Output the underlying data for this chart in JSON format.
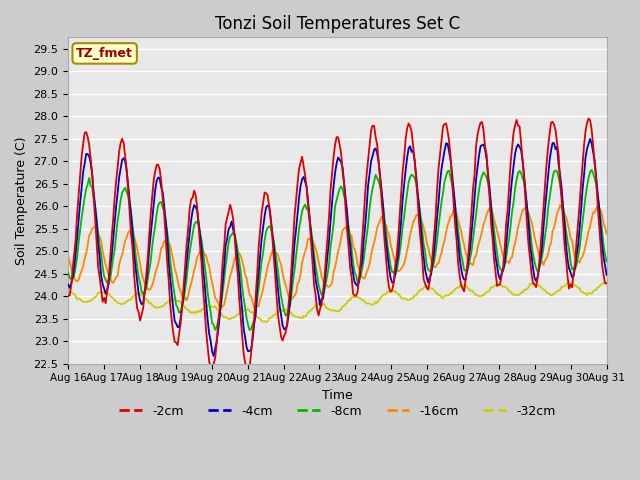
{
  "title": "Tonzi Soil Temperatures Set C",
  "xlabel": "Time",
  "ylabel": "Soil Temperature (C)",
  "ylim": [
    22.5,
    29.75
  ],
  "figsize": [
    6.4,
    4.8
  ],
  "dpi": 100,
  "fig_bg": "#cccccc",
  "ax_bg": "#e8e8e8",
  "grid_color": "white",
  "annotation_text": "TZ_fmet",
  "annotation_bg": "#ffffcc",
  "annotation_border": "#aa8800",
  "colors": {
    "-2cm": "#dd0000",
    "-4cm": "#0000cc",
    "-8cm": "#00bb00",
    "-16cm": "#ff8800",
    "-32cm": "#cccc00"
  },
  "x_tick_labels": [
    "Aug 16",
    "Aug 17",
    "Aug 18",
    "Aug 19",
    "Aug 20",
    "Aug 21",
    "Aug 22",
    "Aug 23",
    "Aug 24",
    "Aug 25",
    "Aug 26",
    "Aug 27",
    "Aug 28",
    "Aug 29",
    "Aug 30",
    "Aug 31"
  ],
  "y_ticks": [
    22.5,
    23.0,
    23.5,
    24.0,
    24.5,
    25.0,
    25.5,
    26.0,
    26.5,
    27.0,
    27.5,
    28.0,
    28.5,
    29.0,
    29.5
  ],
  "n_days": 15,
  "n_points": 360
}
